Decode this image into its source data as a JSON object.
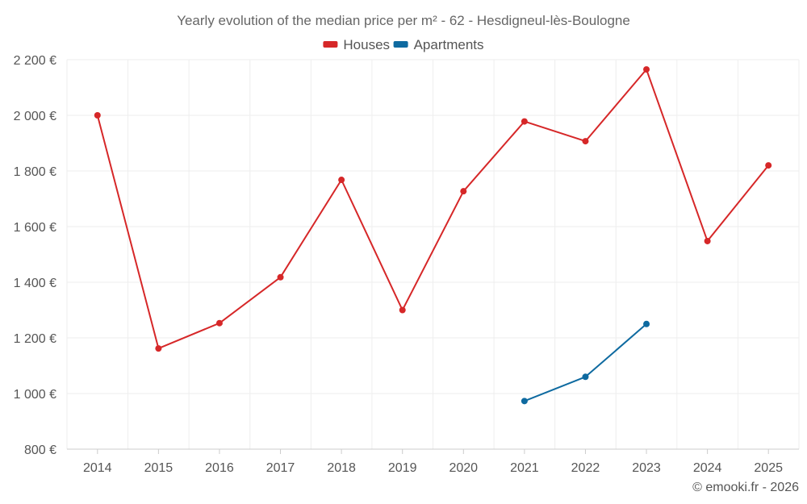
{
  "chart_data": {
    "type": "line",
    "title": "Yearly evolution of the median price per m² - 62 - Hesdigneul-lès-Boulogne",
    "categories": [
      "2014",
      "2015",
      "2016",
      "2017",
      "2018",
      "2019",
      "2020",
      "2021",
      "2022",
      "2023",
      "2024",
      "2025"
    ],
    "series": [
      {
        "name": "Houses",
        "color": "#d62728",
        "values": [
          2000,
          1162,
          1253,
          1418,
          1768,
          1300,
          1727,
          1978,
          1907,
          2165,
          1548,
          1820
        ]
      },
      {
        "name": "Apartments",
        "color": "#0e6aa0",
        "values": [
          null,
          null,
          null,
          null,
          null,
          null,
          null,
          973,
          1060,
          1250,
          null,
          null
        ]
      }
    ],
    "ylim": [
      800,
      2200
    ],
    "yticks": [
      800,
      1000,
      1200,
      1400,
      1600,
      1800,
      2000,
      2200
    ],
    "ytick_labels": [
      "800 €",
      "1 000 €",
      "1 200 €",
      "1 400 €",
      "1 600 €",
      "1 800 €",
      "2 000 €",
      "2 200 €"
    ],
    "xlabel": "",
    "ylabel": "",
    "grid": true,
    "legend_position": "top-center",
    "credit": "© emooki.fr - 2026"
  }
}
